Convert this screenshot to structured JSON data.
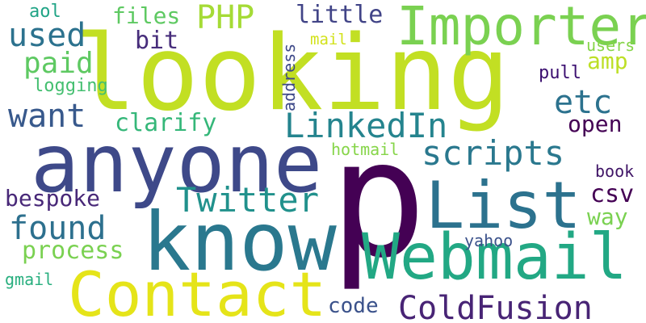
{
  "words": [
    {
      "text": "looking",
      "color": "#c2df23",
      "rotated": false
    },
    {
      "text": "p",
      "color": "#440154",
      "rotated": false
    },
    {
      "text": "anyone",
      "color": "#3e4989",
      "rotated": false
    },
    {
      "text": "know",
      "color": "#2a788e",
      "rotated": false
    },
    {
      "text": "Contact",
      "color": "#e5e419",
      "rotated": false
    },
    {
      "text": "Webmail",
      "color": "#22a884",
      "rotated": false
    },
    {
      "text": "List",
      "color": "#2c728e",
      "rotated": false
    },
    {
      "text": "Importer",
      "color": "#7ad151",
      "rotated": false
    },
    {
      "text": "ColdFusion",
      "color": "#482475",
      "rotated": false
    },
    {
      "text": "LinkedIn",
      "color": "#25848e",
      "rotated": false
    },
    {
      "text": "scripts",
      "color": "#2a788e",
      "rotated": false
    },
    {
      "text": "Twitter",
      "color": "#21918c",
      "rotated": false
    },
    {
      "text": "used",
      "color": "#2c728e",
      "rotated": false
    },
    {
      "text": "PHP",
      "color": "#a5db36",
      "rotated": false
    },
    {
      "text": "paid",
      "color": "#5ec962",
      "rotated": false
    },
    {
      "text": "want",
      "color": "#38598c",
      "rotated": false
    },
    {
      "text": "found",
      "color": "#2d708e",
      "rotated": false
    },
    {
      "text": "etc",
      "color": "#2c728e",
      "rotated": false
    },
    {
      "text": "little",
      "color": "#414487",
      "rotated": false
    },
    {
      "text": "files",
      "color": "#5ec962",
      "rotated": false
    },
    {
      "text": "bit",
      "color": "#472d7b",
      "rotated": false
    },
    {
      "text": "clarify",
      "color": "#35b779",
      "rotated": false
    },
    {
      "text": "open",
      "color": "#440154",
      "rotated": false
    },
    {
      "text": "bespoke",
      "color": "#482878",
      "rotated": false
    },
    {
      "text": "process",
      "color": "#7ad151",
      "rotated": false
    },
    {
      "text": "csv",
      "color": "#440154",
      "rotated": false
    },
    {
      "text": "way",
      "color": "#7ad151",
      "rotated": false
    },
    {
      "text": "code",
      "color": "#3b528b",
      "rotated": false
    },
    {
      "text": "amp",
      "color": "#bddf26",
      "rotated": false
    },
    {
      "text": "address",
      "color": "#3e4989",
      "rotated": true
    },
    {
      "text": "aol",
      "color": "#20a486",
      "rotated": false
    },
    {
      "text": "mail",
      "color": "#d2e21b",
      "rotated": false
    },
    {
      "text": "logging",
      "color": "#44bf70",
      "rotated": false
    },
    {
      "text": "users",
      "color": "#86d549",
      "rotated": false
    },
    {
      "text": "pull",
      "color": "#3b0f70",
      "rotated": false
    },
    {
      "text": "hotmail",
      "color": "#86d549",
      "rotated": false
    },
    {
      "text": "book",
      "color": "#3f1466",
      "rotated": false
    },
    {
      "text": "yahoo",
      "color": "#3b528b",
      "rotated": false
    },
    {
      "text": "gmail",
      "color": "#29af7f",
      "rotated": false
    }
  ]
}
